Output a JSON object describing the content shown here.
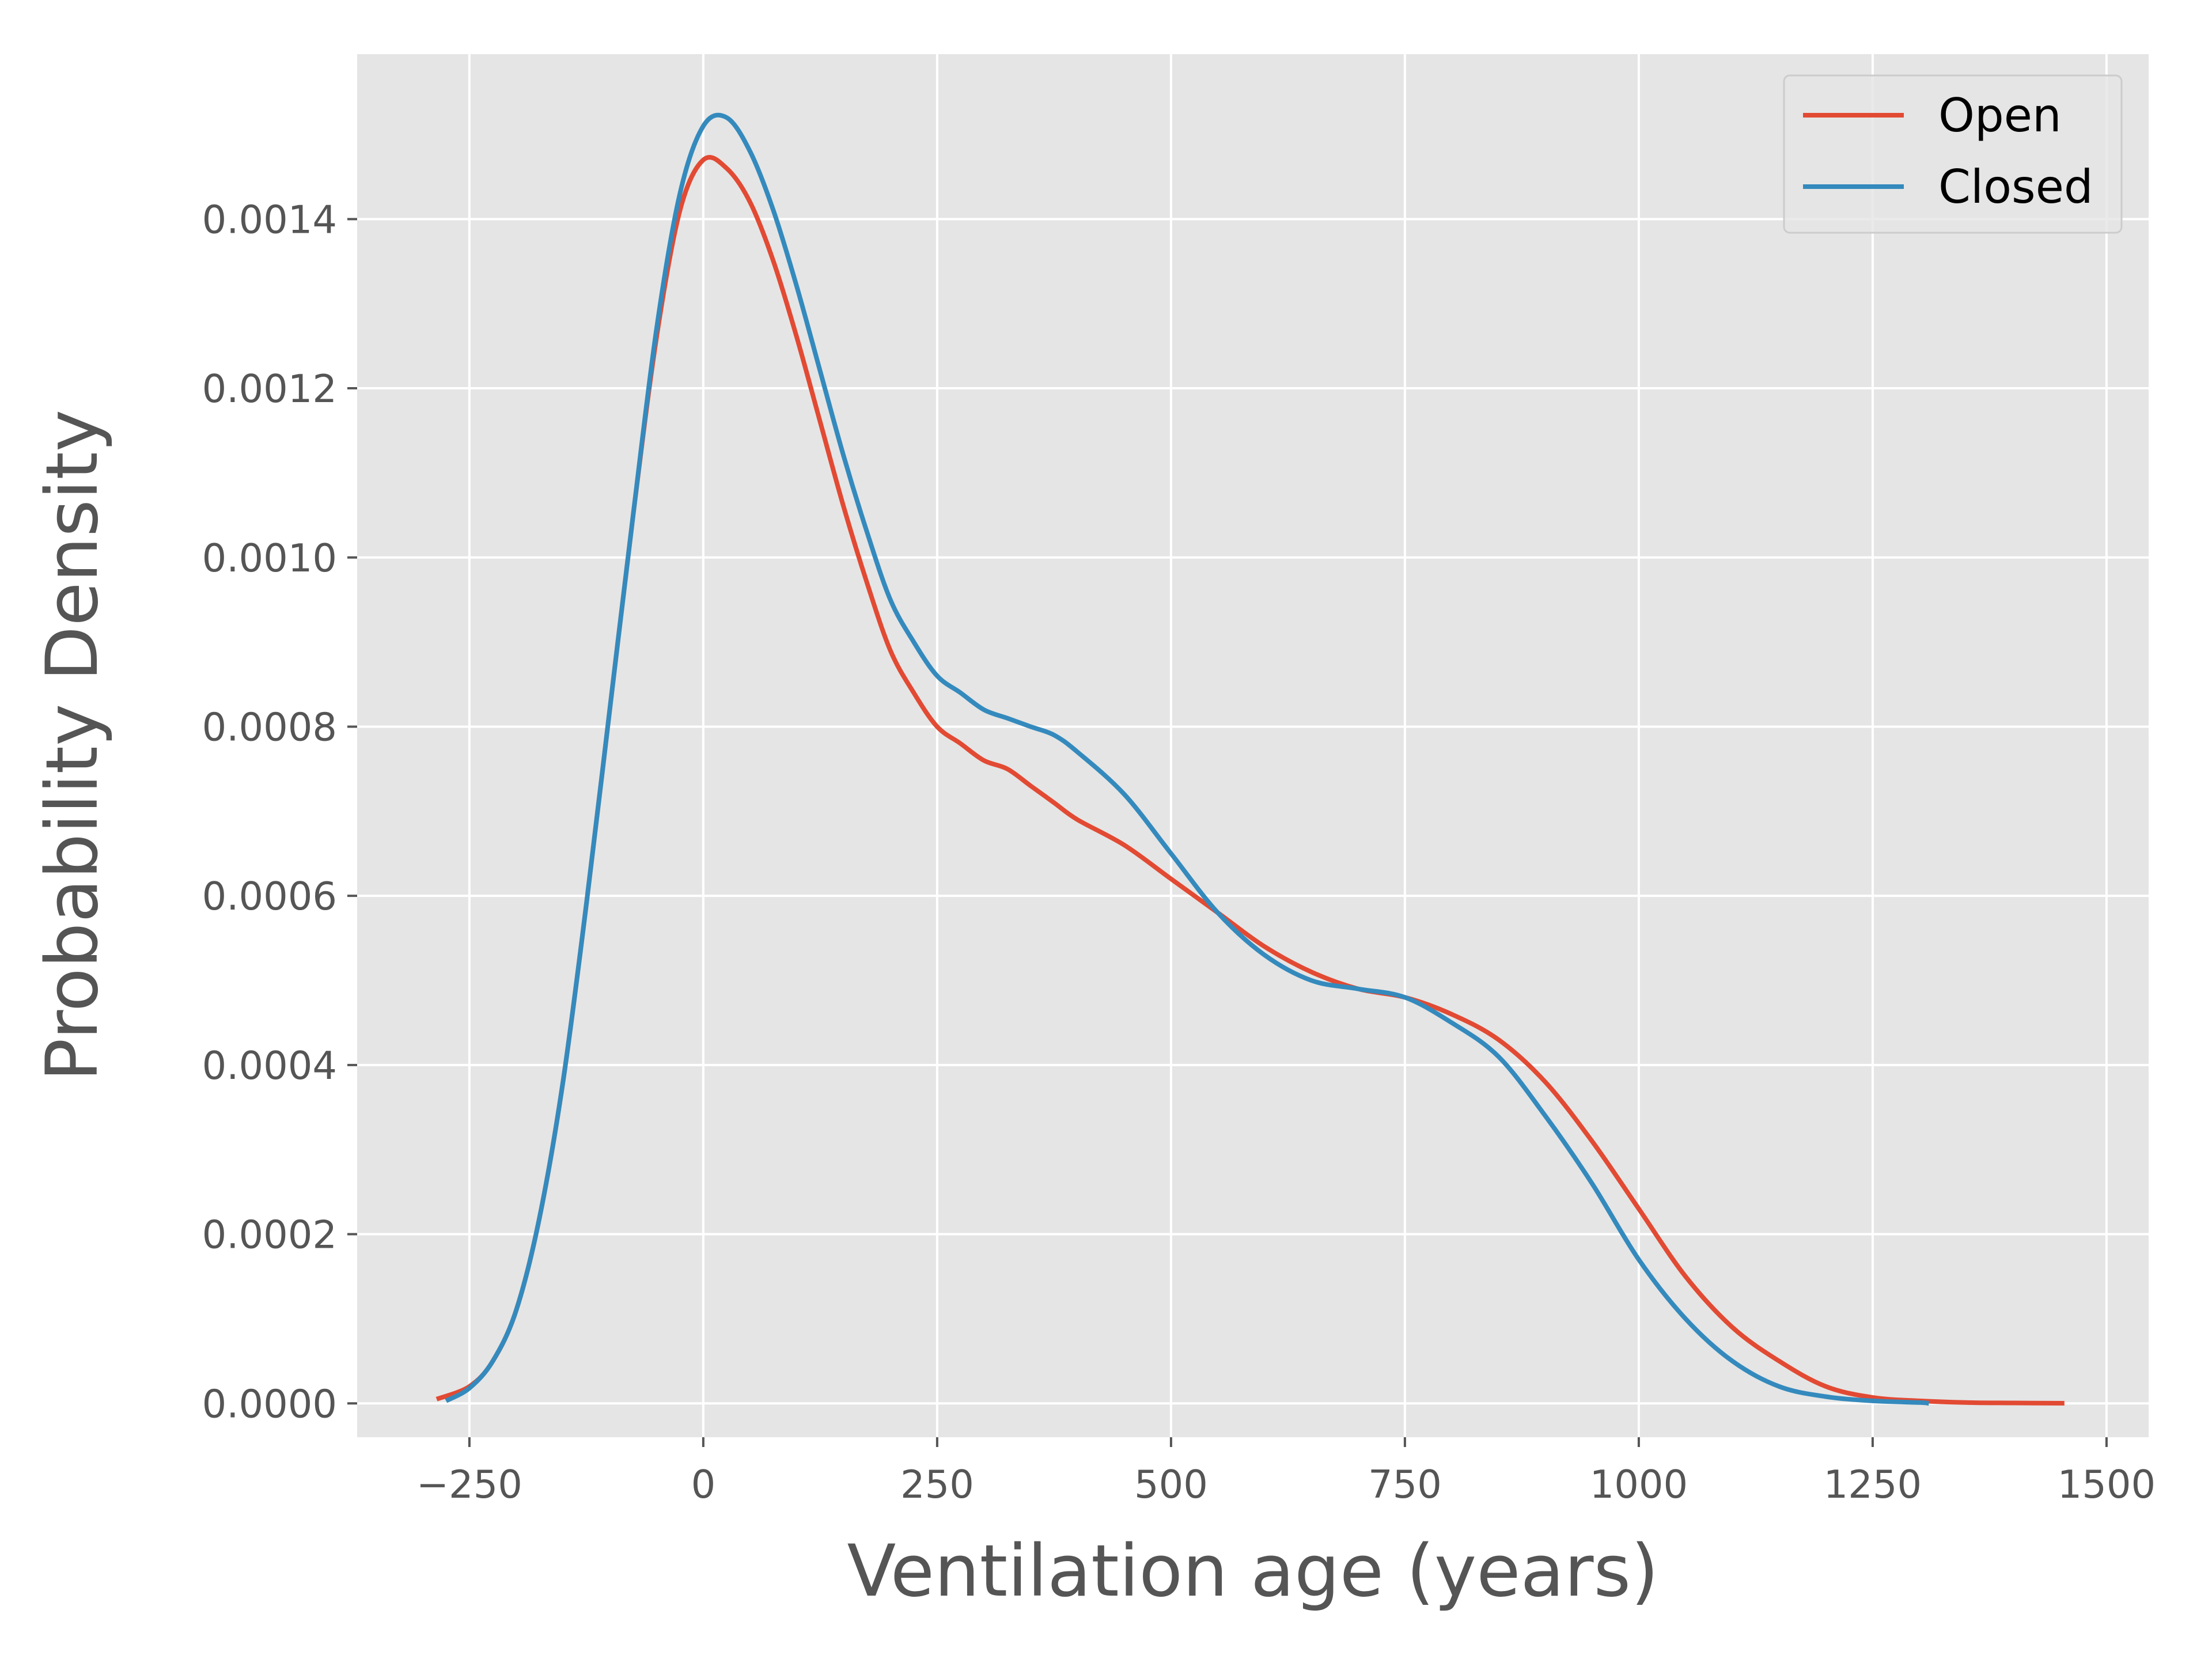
{
  "chart_data": {
    "type": "line",
    "title": "",
    "xlabel": "Ventilation age (years)",
    "ylabel": "Probability Density",
    "xlim": [
      -370,
      1545
    ],
    "ylim": [
      -4e-05,
      0.001595
    ],
    "xticks": [
      -250,
      0,
      250,
      500,
      750,
      1000,
      1250,
      1500
    ],
    "xtick_labels": [
      "−250",
      "0",
      "250",
      "500",
      "750",
      "1000",
      "1250",
      "1500"
    ],
    "yticks": [
      0.0,
      0.0002,
      0.0004,
      0.0006,
      0.0008,
      0.001,
      0.0012,
      0.0014
    ],
    "ytick_labels": [
      "0.0000",
      "0.0002",
      "0.0004",
      "0.0006",
      "0.0008",
      "0.0010",
      "0.0012",
      "0.0014"
    ],
    "grid": true,
    "legend_position": "top-right",
    "background": "#e5e5e5",
    "series": [
      {
        "name": "Open",
        "color": "#e24a33",
        "x": [
          -285,
          -250,
          -225,
          -200,
          -175,
          -150,
          -125,
          -100,
          -75,
          -50,
          -25,
          0,
          25,
          50,
          75,
          100,
          125,
          150,
          175,
          200,
          225,
          250,
          275,
          300,
          325,
          350,
          375,
          400,
          450,
          500,
          550,
          600,
          650,
          700,
          750,
          800,
          850,
          900,
          950,
          1000,
          1050,
          1100,
          1150,
          1200,
          1250,
          1300,
          1350,
          1400,
          1455
        ],
        "y": [
          5e-06,
          2e-05,
          5e-05,
          0.00011,
          0.00022,
          0.00038,
          0.00059,
          0.00082,
          0.00105,
          0.00126,
          0.00141,
          0.00147,
          0.00146,
          0.00142,
          0.00135,
          0.00126,
          0.00116,
          0.00106,
          0.00097,
          0.00089,
          0.00084,
          0.0008,
          0.00078,
          0.00076,
          0.00075,
          0.00073,
          0.00071,
          0.00069,
          0.00066,
          0.00062,
          0.00058,
          0.00054,
          0.00051,
          0.00049,
          0.00048,
          0.00046,
          0.00043,
          0.00038,
          0.00031,
          0.00023,
          0.00015,
          9e-05,
          5e-05,
          2e-05,
          7e-06,
          3e-06,
          1e-06,
          5e-07,
          2e-07
        ]
      },
      {
        "name": "Closed",
        "color": "#348abd",
        "x": [
          -275,
          -250,
          -225,
          -200,
          -175,
          -150,
          -125,
          -100,
          -75,
          -50,
          -25,
          0,
          25,
          50,
          75,
          100,
          125,
          150,
          175,
          200,
          225,
          250,
          275,
          300,
          325,
          350,
          375,
          400,
          450,
          500,
          550,
          600,
          650,
          700,
          750,
          800,
          850,
          900,
          950,
          1000,
          1050,
          1100,
          1150,
          1200,
          1250,
          1300,
          1310
        ],
        "y": [
          3e-06,
          1.8e-05,
          5e-05,
          0.00011,
          0.00022,
          0.00038,
          0.00059,
          0.00082,
          0.00105,
          0.00127,
          0.00143,
          0.00151,
          0.00152,
          0.00148,
          0.00141,
          0.00132,
          0.00122,
          0.00112,
          0.00103,
          0.00095,
          0.0009,
          0.00086,
          0.00084,
          0.00082,
          0.00081,
          0.0008,
          0.00079,
          0.00077,
          0.00072,
          0.00065,
          0.00058,
          0.00053,
          0.0005,
          0.00049,
          0.00048,
          0.00045,
          0.00041,
          0.00034,
          0.00026,
          0.00017,
          0.0001,
          5e-05,
          2e-05,
          8e-06,
          3e-06,
          1e-06,
          0.0
        ]
      }
    ]
  }
}
